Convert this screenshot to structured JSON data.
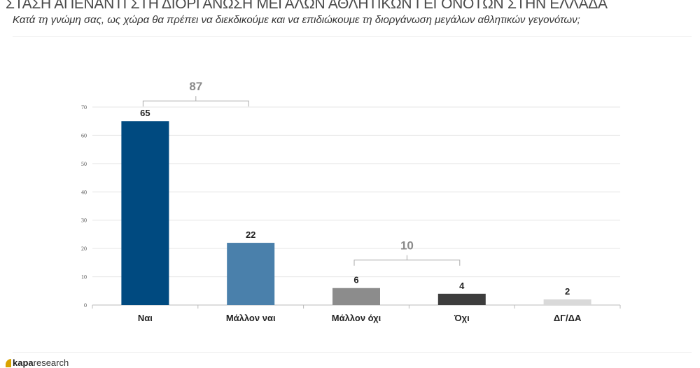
{
  "header": {
    "title": "ΣΤΑΣΗ ΑΠΕΝΑΝΤΙ ΣΤΗ ΔΙΟΡΓΑΝΩΣΗ ΜΕΓΑΛΩΝ ΑΘΛΗΤΙΚΩΝ ΓΕΓΟΝΟΤΩΝ ΣΤΗΝ ΕΛΛΑΔΑ",
    "subtitle": "Κατά τη γνώμη σας, ως χώρα θα πρέπει να διεκδικούμε και να επιδιώκουμε τη διοργάνωση μεγάλων αθλητικών γεγονότων;"
  },
  "footer": {
    "logo_bold": "kapa",
    "logo_rest": "research"
  },
  "chart_data": {
    "type": "bar",
    "title": "",
    "categories": [
      "Ναι",
      "Μάλλον ναι",
      "Μάλλον όχι",
      "Όχι",
      "ΔΓ/ΔΑ"
    ],
    "values": [
      65,
      22,
      6,
      4,
      2
    ],
    "colors": [
      "#004a80",
      "#4a80ab",
      "#8c8c8c",
      "#3d3d3d",
      "#d9d9d9"
    ],
    "ylim": [
      0,
      70
    ],
    "yticks": [
      0,
      10,
      20,
      30,
      40,
      50,
      60,
      70
    ],
    "grid": true,
    "brackets": [
      {
        "from": 0,
        "to": 1,
        "label": "87"
      },
      {
        "from": 2,
        "to": 3,
        "label": "10"
      }
    ]
  }
}
